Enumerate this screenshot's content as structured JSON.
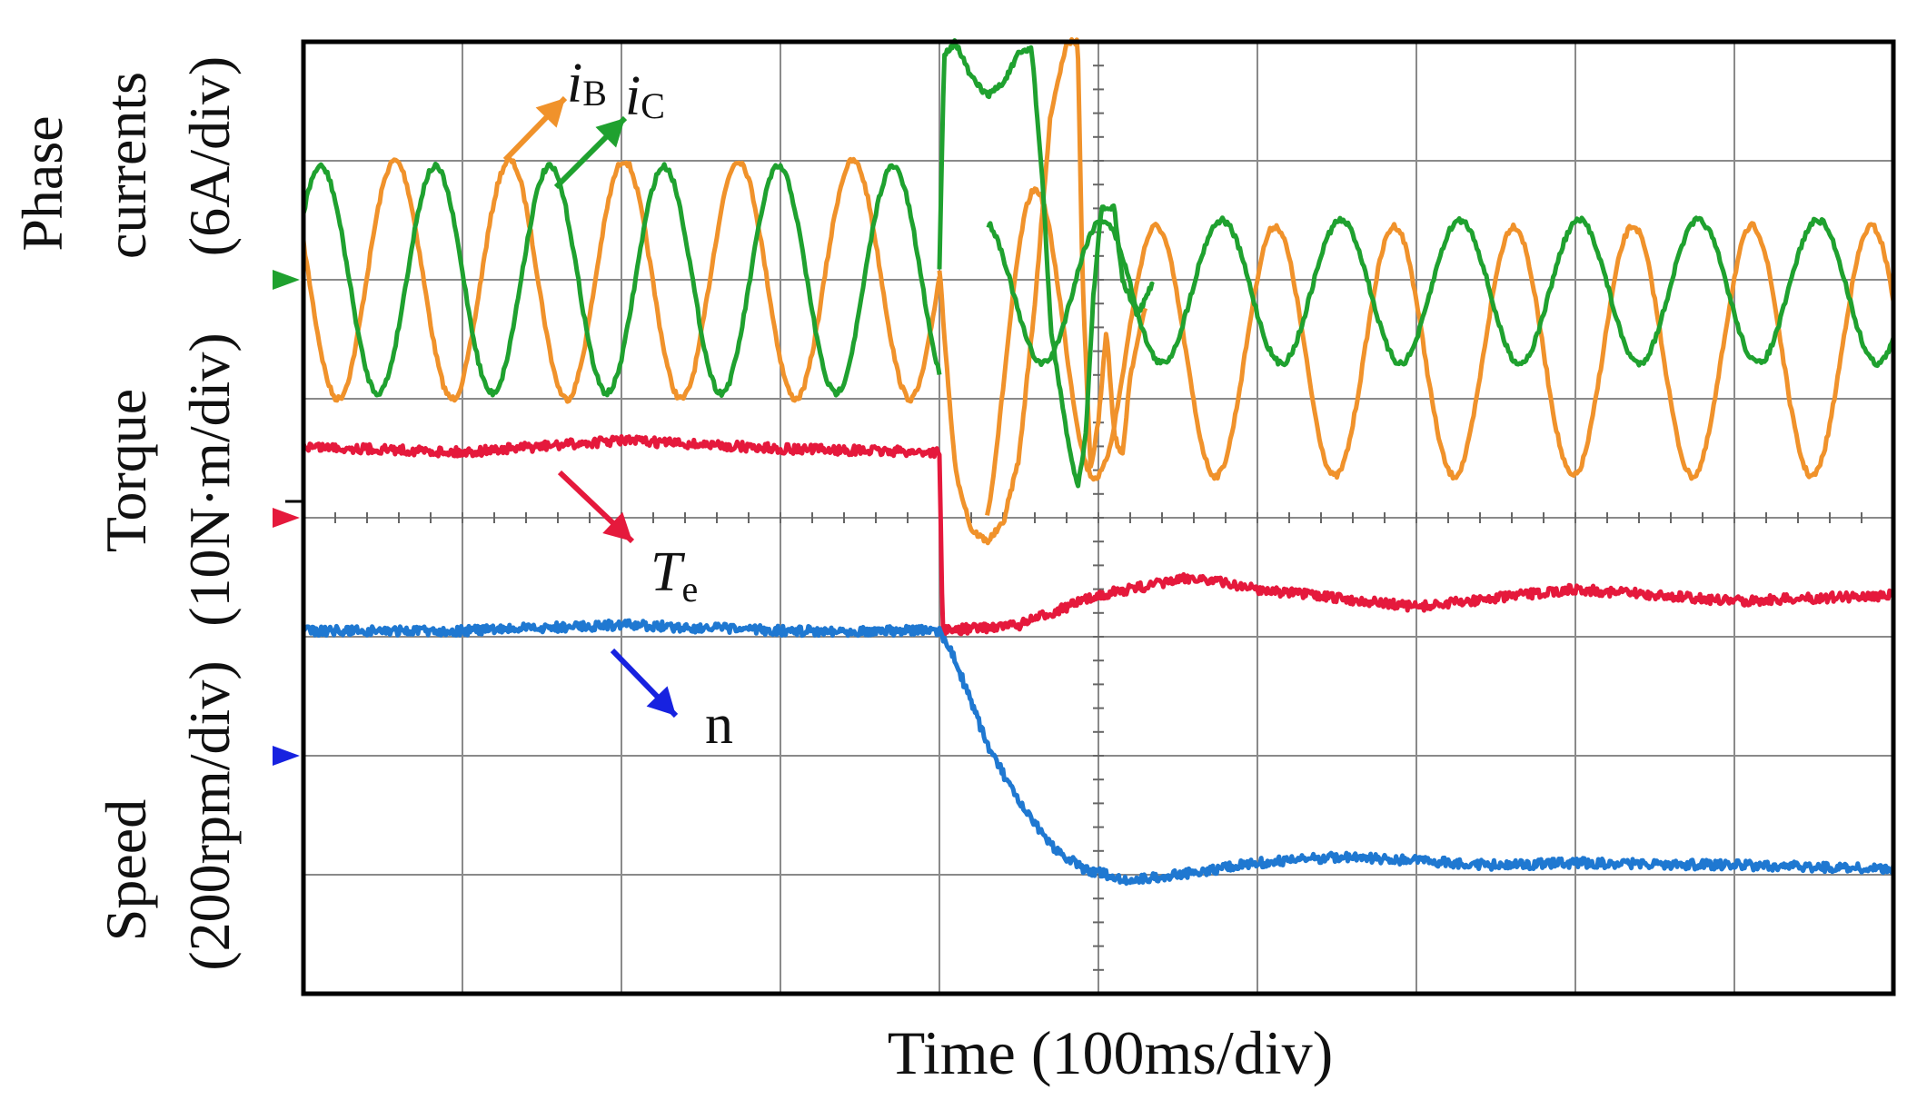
{
  "chart_data": {
    "type": "line",
    "title": "",
    "xlabel": "Time (100ms/div)",
    "x_divisions": 10,
    "y_divisions": 8,
    "grid": true,
    "axis_labels": {
      "phase": {
        "line1": "Phase",
        "line2": "currents",
        "unit": "(6A/div)"
      },
      "torque": {
        "line1": "Torque",
        "unit": "(10N·m/div)"
      },
      "speed": {
        "line1": "Speed",
        "unit": "(200rpm/div)"
      }
    },
    "x_unit": "div",
    "y_unit": "div (counted from top of screen)",
    "series": [
      {
        "name": "iB",
        "label_base": "i",
        "label_sub": "B",
        "color": "#f0922b",
        "segments": [
          {
            "x_start": 0,
            "x_end": 4.0,
            "center": 2.0,
            "amplitude": 1.0,
            "period": 0.72,
            "phase": 0.45
          },
          {
            "x_start": 4.3,
            "x_end": 10.0,
            "center": 2.6,
            "amplitude": 1.05,
            "period": 0.75,
            "phase": 0.1,
            "decay_from": 1.6
          }
        ],
        "transient": [
          [
            4.0,
            1.9
          ],
          [
            4.05,
            2.8
          ],
          [
            4.1,
            3.6
          ],
          [
            4.2,
            4.1
          ],
          [
            4.3,
            4.2
          ],
          [
            4.4,
            4.05
          ],
          [
            4.5,
            3.5
          ],
          [
            4.6,
            2.2
          ],
          [
            4.7,
            0.6
          ],
          [
            4.8,
            0.0
          ],
          [
            4.87,
            0.0
          ],
          [
            4.9,
            2.0
          ],
          [
            4.95,
            3.6
          ],
          [
            5.0,
            3.2
          ],
          [
            5.05,
            2.4
          ],
          [
            5.1,
            3.3
          ],
          [
            5.15,
            3.5
          ],
          [
            5.2,
            2.8
          ],
          [
            5.3,
            2.2
          ]
        ]
      },
      {
        "name": "iC",
        "label_base": "i",
        "label_sub": "C",
        "color": "#1fa12f",
        "segments": [
          {
            "x_start": 0,
            "x_end": 4.0,
            "center": 2.0,
            "amplitude": 0.95,
            "period": 0.72,
            "phase": 0.1
          },
          {
            "x_start": 4.3,
            "x_end": 10.0,
            "center": 2.1,
            "amplitude": 0.6,
            "period": 0.75,
            "phase": 0.55
          }
        ],
        "transient": [
          [
            4.0,
            1.9
          ],
          [
            4.03,
            0.1
          ],
          [
            4.1,
            0.0
          ],
          [
            4.2,
            0.3
          ],
          [
            4.3,
            0.45
          ],
          [
            4.4,
            0.35
          ],
          [
            4.5,
            0.1
          ],
          [
            4.58,
            0.05
          ],
          [
            4.65,
            1.2
          ],
          [
            4.7,
            2.4
          ],
          [
            4.8,
            3.3
          ],
          [
            4.87,
            3.75
          ],
          [
            4.92,
            3.3
          ],
          [
            4.97,
            2.1
          ],
          [
            5.02,
            1.4
          ],
          [
            5.1,
            1.4
          ],
          [
            5.15,
            2.0
          ],
          [
            5.25,
            2.3
          ],
          [
            5.35,
            2.0
          ]
        ]
      },
      {
        "name": "Te",
        "label_base": "T",
        "label_sub": "e",
        "color": "#e5193c",
        "points": [
          [
            0,
            3.4
          ],
          [
            1.0,
            3.45
          ],
          [
            2.0,
            3.35
          ],
          [
            3.0,
            3.42
          ],
          [
            4.0,
            3.45
          ],
          [
            4.02,
            4.95
          ],
          [
            4.5,
            4.9
          ],
          [
            5.0,
            4.65
          ],
          [
            5.6,
            4.5
          ],
          [
            6.0,
            4.6
          ],
          [
            7.0,
            4.75
          ],
          [
            8.0,
            4.6
          ],
          [
            9.0,
            4.7
          ],
          [
            10.0,
            4.65
          ]
        ]
      },
      {
        "name": "n",
        "label_base": "n",
        "label_sub": "",
        "color": "#1f78d1",
        "points": [
          [
            0,
            4.95
          ],
          [
            1.0,
            4.95
          ],
          [
            2.0,
            4.9
          ],
          [
            3.0,
            4.95
          ],
          [
            4.0,
            4.95
          ],
          [
            4.1,
            5.2
          ],
          [
            4.3,
            5.9
          ],
          [
            4.5,
            6.4
          ],
          [
            4.7,
            6.75
          ],
          [
            4.9,
            6.95
          ],
          [
            5.2,
            7.05
          ],
          [
            5.6,
            6.98
          ],
          [
            6.0,
            6.9
          ],
          [
            6.5,
            6.85
          ],
          [
            7.0,
            6.88
          ],
          [
            7.5,
            6.92
          ],
          [
            8.0,
            6.9
          ],
          [
            9.0,
            6.92
          ],
          [
            10.0,
            6.95
          ]
        ]
      }
    ],
    "channel_markers": [
      {
        "name": "phase-currents",
        "color": "#1fa12f",
        "y": 2.0
      },
      {
        "name": "torque",
        "color": "#e5193c",
        "y": 4.0
      },
      {
        "name": "speed",
        "color": "#1722e0",
        "y": 6.0
      }
    ]
  }
}
